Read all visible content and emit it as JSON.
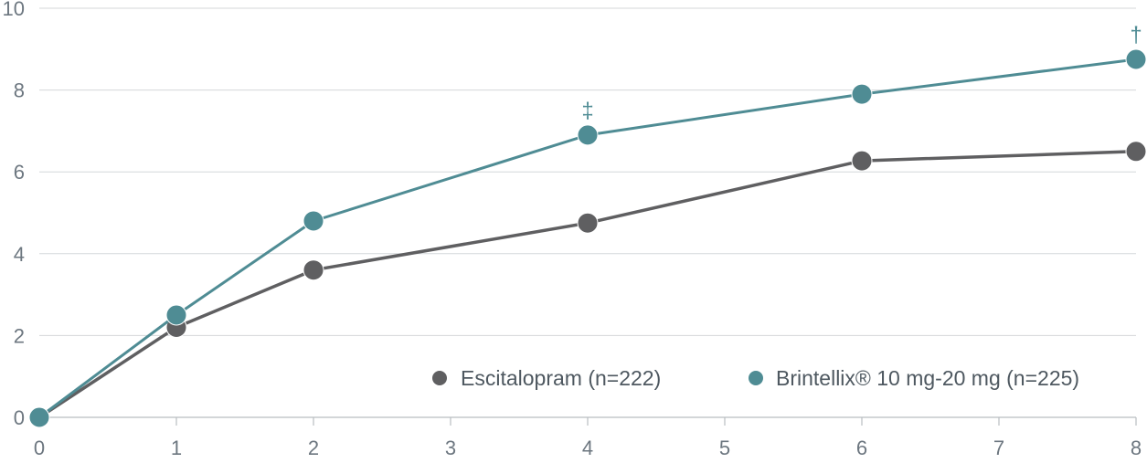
{
  "chart_data": {
    "type": "line",
    "title": "",
    "xlabel": "",
    "ylabel": "",
    "xlim": [
      0,
      8
    ],
    "ylim": [
      0,
      10
    ],
    "x_ticks": [
      "0",
      "1",
      "2",
      "3",
      "4",
      "5",
      "6",
      "7",
      "8"
    ],
    "y_ticks": [
      "0",
      "2",
      "4",
      "6",
      "8",
      "10"
    ],
    "grid": "horizontal",
    "legend_position": "bottom-right",
    "series": [
      {
        "name": "Escitalopram (n=222)",
        "color": "#5f5f61",
        "x": [
          0,
          1,
          2,
          4,
          6,
          8
        ],
        "y": [
          0,
          2.2,
          3.6,
          4.75,
          6.27,
          6.5
        ]
      },
      {
        "name": "Brintellix® 10 mg-20 mg (n=225)",
        "color": "#4f8c94",
        "x": [
          0,
          1,
          2,
          4,
          6,
          8
        ],
        "y": [
          0,
          2.5,
          4.8,
          6.9,
          7.9,
          8.75
        ]
      }
    ],
    "annotations": [
      {
        "text": "‡",
        "x": 4,
        "y": 6.9,
        "series": 1
      },
      {
        "text": "†",
        "x": 8,
        "y": 8.75,
        "series": 1
      }
    ]
  }
}
